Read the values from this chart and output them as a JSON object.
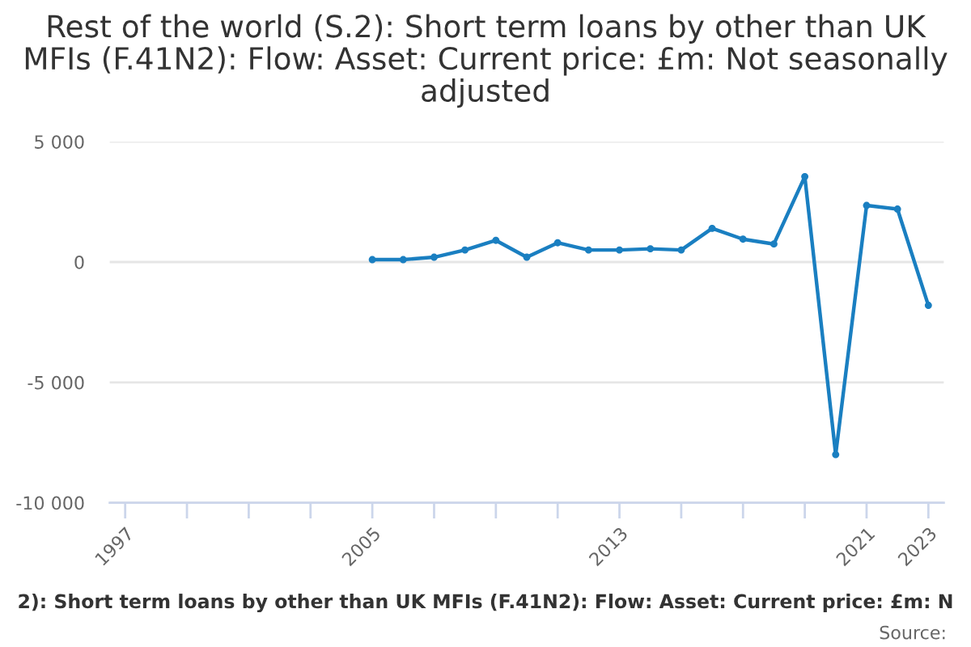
{
  "chart_data": {
    "type": "line",
    "title": "Rest of the world (S.2): Short term loans by other than UK MFIs (F.41N2): Flow: Asset: Current price: £m: Not seasonally adjusted",
    "x": [
      2005,
      2006,
      2007,
      2008,
      2009,
      2010,
      2011,
      2012,
      2013,
      2014,
      2015,
      2016,
      2017,
      2018,
      2019,
      2020,
      2021,
      2022,
      2023
    ],
    "series": [
      {
        "color": "#1a7fc1",
        "values": [
          100,
          100,
          200,
          500,
          900,
          200,
          800,
          500,
          500,
          550,
          500,
          1400,
          950,
          750,
          3550,
          -8000,
          2350,
          2200,
          -1800
        ]
      }
    ],
    "xlim": [
      1996.5,
      2023.5
    ],
    "xticks": [
      1997,
      {
        "value": 1999,
        "label": null
      },
      {
        "value": 2001,
        "label": null
      },
      {
        "value": 2003,
        "label": null
      },
      2005,
      {
        "value": 2007,
        "label": null
      },
      {
        "value": 2009,
        "label": null
      },
      {
        "value": 2011,
        "label": null
      },
      2013,
      {
        "value": 2015,
        "label": null
      },
      {
        "value": 2017,
        "label": null
      },
      {
        "value": 2019,
        "label": null
      },
      2021,
      2023
    ],
    "ylim": [
      -10000,
      5000
    ],
    "yticks": [
      {
        "value": 5000,
        "label": "5 000"
      },
      0,
      {
        "value": -5000,
        "label": "-5 000"
      },
      {
        "value": -10000,
        "label": "-10 000"
      }
    ],
    "grid": "y",
    "marker": "circle",
    "line_style": "solid",
    "annotations": [
      "2): Short term loans by other than UK MFIs (F.41N2): Flow: Asset: Current price: £m: N",
      "Source:"
    ]
  }
}
